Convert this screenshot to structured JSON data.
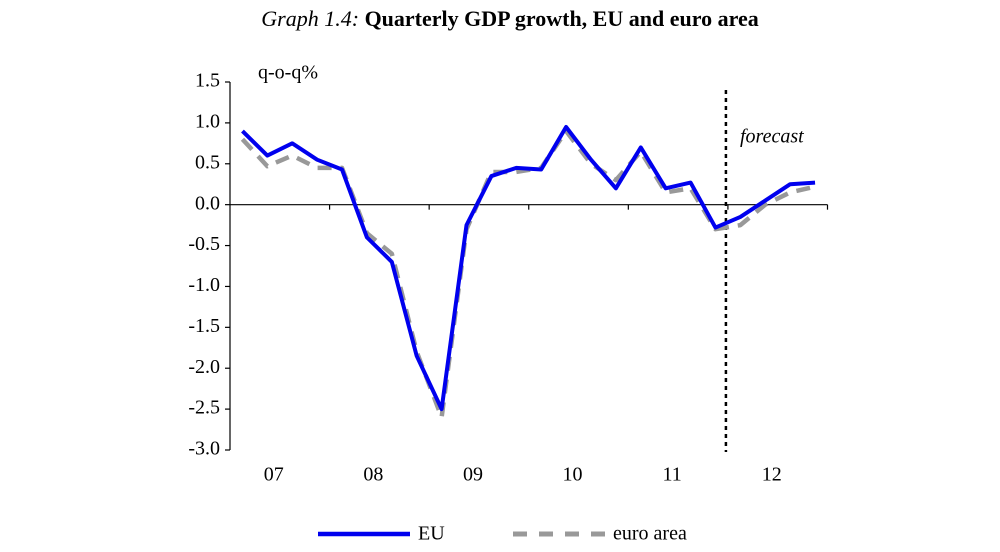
{
  "chart_data": {
    "type": "line",
    "title_prefix": "Graph 1.4:",
    "title": "Quarterly GDP growth, EU and euro area",
    "y_label": "q-o-q%",
    "annotation": "forecast",
    "categories": [
      null,
      null,
      null,
      null,
      null,
      null,
      null,
      null,
      null,
      null,
      null,
      null,
      null,
      null,
      null,
      null,
      null,
      null,
      null,
      null,
      null,
      null,
      null,
      null
    ],
    "year_labels": [
      "07",
      "08",
      "09",
      "10",
      "11",
      "12"
    ],
    "series": [
      {
        "name": "EU",
        "color": "#0000ee",
        "dash": false,
        "values": [
          0.9,
          0.6,
          0.75,
          0.55,
          0.43,
          -0.4,
          -0.7,
          -1.85,
          -2.5,
          -0.25,
          0.35,
          0.45,
          0.43,
          0.95,
          0.55,
          0.2,
          0.7,
          0.2,
          0.27,
          -0.28,
          -0.15,
          0.05,
          0.25,
          0.27
        ]
      },
      {
        "name": "euro area",
        "color": "#999999",
        "dash": true,
        "values": [
          0.8,
          0.47,
          0.6,
          0.45,
          0.45,
          -0.35,
          -0.6,
          -1.8,
          -2.6,
          -0.3,
          0.4,
          0.4,
          0.45,
          0.9,
          0.5,
          0.3,
          0.65,
          0.15,
          0.2,
          -0.3,
          -0.25,
          0.0,
          0.15,
          0.22
        ]
      }
    ],
    "ylim": [
      -3,
      1.5
    ],
    "yticks": [
      {
        "value": -3,
        "label": "-3.0"
      },
      -2.5,
      {
        "value": -2,
        "label": "-2.0"
      },
      -1.5,
      {
        "value": -1,
        "label": "-1.0"
      },
      -0.5,
      {
        "value": 0,
        "label": "0.0"
      },
      0.5,
      {
        "value": 1,
        "label": "1.0"
      },
      1.5
    ],
    "grid": false,
    "legend": "bottom"
  }
}
